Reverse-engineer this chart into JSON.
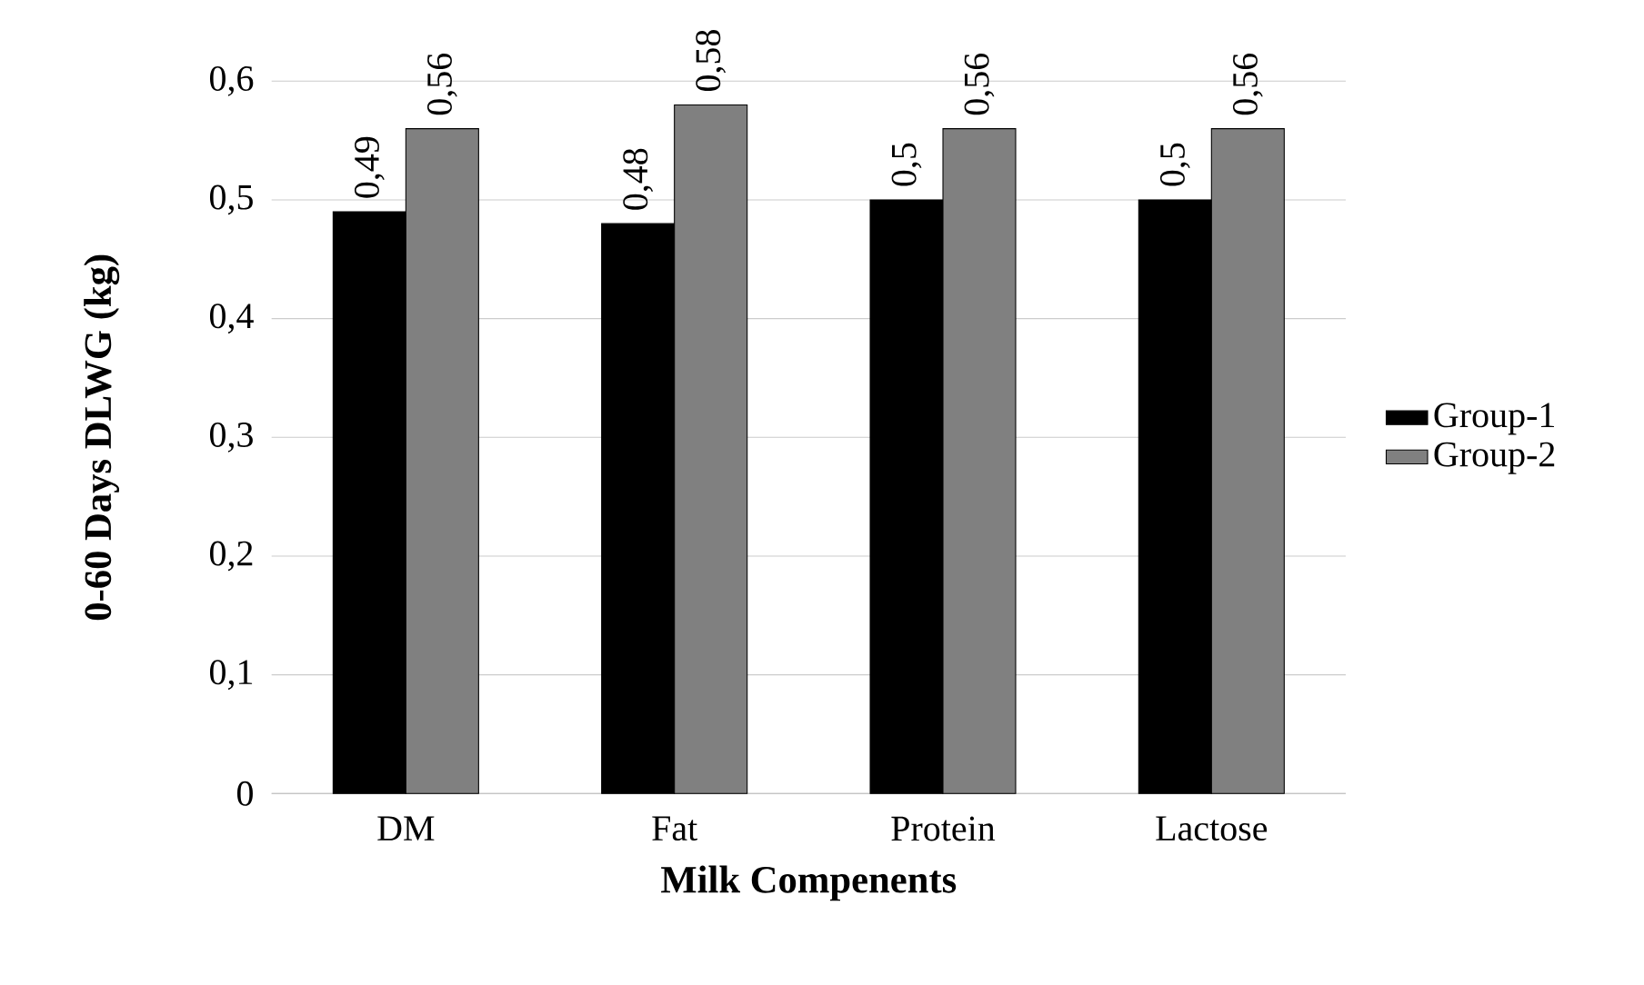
{
  "chart_data": {
    "type": "bar",
    "xlabel": "Milk Compenents",
    "ylabel": "0-60 Days DLWG (kg)",
    "categories": [
      "DM",
      "Fat",
      "Protein",
      "Lactose"
    ],
    "series": [
      {
        "name": "Group-1",
        "color": "#000000",
        "values": [
          0.49,
          0.48,
          0.5,
          0.5
        ],
        "value_labels": [
          "0,49",
          "0,48",
          "0,5",
          "0,5"
        ]
      },
      {
        "name": "Group-2",
        "color": "#808080",
        "values": [
          0.56,
          0.58,
          0.56,
          0.56
        ],
        "value_labels": [
          "0,56",
          "0,58",
          "0,56",
          "0,56"
        ]
      }
    ],
    "ylim": [
      0,
      0.6
    ],
    "yticks": [
      {
        "value": 0,
        "label": "0"
      },
      {
        "value": 0.1,
        "label": "0,1"
      },
      {
        "value": 0.2,
        "label": "0,2"
      },
      {
        "value": 0.3,
        "label": "0,3"
      },
      {
        "value": 0.4,
        "label": "0,4"
      },
      {
        "value": 0.5,
        "label": "0,5"
      },
      {
        "value": 0.6,
        "label": "0,6"
      }
    ],
    "grid": "y",
    "legend": "right"
  }
}
